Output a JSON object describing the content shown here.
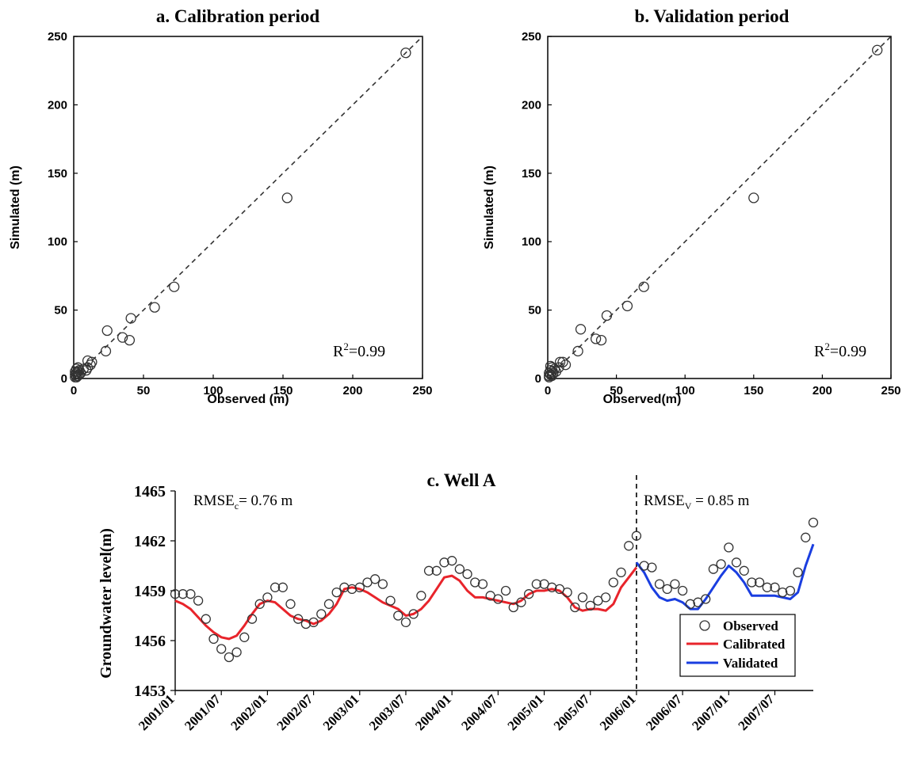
{
  "chart_data": [
    {
      "type": "scatter",
      "title": "a.  Calibration period",
      "xlabel": "Observed  (m)",
      "ylabel": "Simulated (m)",
      "xlim": [
        0,
        250
      ],
      "ylim": [
        0,
        250
      ],
      "xticks": [
        "0",
        "50",
        "100",
        "150",
        "200",
        "250"
      ],
      "yticks": [
        "0",
        "50",
        "100",
        "150",
        "200",
        "250"
      ],
      "annotation_base": "R",
      "annotation_sup": "2",
      "annotation_rest": "=0.99",
      "reference_line": "1:1 dashed",
      "points": [
        [
          238,
          238
        ],
        [
          153,
          132
        ],
        [
          72,
          67
        ],
        [
          58,
          52
        ],
        [
          41,
          44
        ],
        [
          40,
          28
        ],
        [
          35,
          30
        ],
        [
          24,
          35
        ],
        [
          23,
          20
        ],
        [
          13,
          12
        ],
        [
          12,
          10
        ],
        [
          10,
          13
        ],
        [
          10,
          8
        ],
        [
          9,
          6
        ],
        [
          7,
          7
        ],
        [
          5,
          4
        ],
        [
          4,
          6
        ],
        [
          4,
          3
        ],
        [
          3,
          8
        ],
        [
          3,
          5
        ],
        [
          3,
          2
        ],
        [
          2,
          7
        ],
        [
          2,
          4
        ],
        [
          2,
          1
        ],
        [
          1,
          5
        ],
        [
          1,
          3
        ],
        [
          1,
          1
        ],
        [
          2,
          2
        ]
      ]
    },
    {
      "type": "scatter",
      "title": "b.  Validation period",
      "xlabel": "Observed(m)",
      "ylabel": "Simulated (m)",
      "xlim": [
        0,
        250
      ],
      "ylim": [
        0,
        250
      ],
      "xticks": [
        "0",
        "50",
        "100",
        "150",
        "200",
        "250"
      ],
      "yticks": [
        "0",
        "50",
        "100",
        "150",
        "200",
        "250"
      ],
      "annotation_base": "R",
      "annotation_sup": "2",
      "annotation_rest": "=0.99",
      "reference_line": "1:1 dashed",
      "points": [
        [
          240,
          240
        ],
        [
          150,
          132
        ],
        [
          70,
          67
        ],
        [
          58,
          53
        ],
        [
          43,
          46
        ],
        [
          39,
          28
        ],
        [
          35,
          29
        ],
        [
          24,
          36
        ],
        [
          22,
          20
        ],
        [
          13,
          10
        ],
        [
          11,
          12
        ],
        [
          9,
          12
        ],
        [
          8,
          8
        ],
        [
          6,
          5
        ],
        [
          5,
          7
        ],
        [
          4,
          4
        ],
        [
          3,
          8
        ],
        [
          3,
          5
        ],
        [
          3,
          2
        ],
        [
          2,
          6
        ],
        [
          2,
          3
        ],
        [
          1,
          4
        ],
        [
          1,
          2
        ],
        [
          1,
          1
        ],
        [
          2,
          9
        ]
      ]
    },
    {
      "type": "line",
      "title": "c. Well A",
      "xlabel": "",
      "ylabel": "Groundwater level(m)",
      "ylim": [
        1453,
        1465
      ],
      "yticks": [
        "1453",
        "1456",
        "1459",
        "1462",
        "1465"
      ],
      "x_tick_labels": [
        "2001/01",
        "2001/07",
        "2002/01",
        "2002/07",
        "2003/01",
        "2003/07",
        "2004/01",
        "2004/07",
        "2005/01",
        "2005/07",
        "2006/01",
        "2006/07",
        "2007/01",
        "2007/07"
      ],
      "x_start": "2001/01",
      "x_end": "2007/12",
      "split_line": "2006/01",
      "rmse_c": {
        "base": "RMSE",
        "sub": "c",
        "rest": "= 0.76 m"
      },
      "rmse_v": {
        "base": "RMSE",
        "sub": "V",
        "rest": " = 0.85 m"
      },
      "legend_position": "bottom-right",
      "series": [
        {
          "name": "Observed",
          "style": "open circles",
          "x": [
            "2001/01",
            "2001/02",
            "2001/03",
            "2001/04",
            "2001/05",
            "2001/06",
            "2001/07",
            "2001/08",
            "2001/09",
            "2001/10",
            "2001/11",
            "2001/12",
            "2002/01",
            "2002/02",
            "2002/03",
            "2002/04",
            "2002/05",
            "2002/06",
            "2002/07",
            "2002/08",
            "2002/09",
            "2002/10",
            "2002/11",
            "2002/12",
            "2003/01",
            "2003/02",
            "2003/03",
            "2003/04",
            "2003/05",
            "2003/06",
            "2003/07",
            "2003/08",
            "2003/09",
            "2003/10",
            "2003/11",
            "2003/12",
            "2004/01",
            "2004/02",
            "2004/03",
            "2004/04",
            "2004/05",
            "2004/06",
            "2004/07",
            "2004/08",
            "2004/09",
            "2004/10",
            "2004/11",
            "2004/12",
            "2005/01",
            "2005/02",
            "2005/03",
            "2005/04",
            "2005/05",
            "2005/06",
            "2005/07",
            "2005/08",
            "2005/09",
            "2005/10",
            "2005/11",
            "2005/12",
            "2006/01",
            "2006/02",
            "2006/03",
            "2006/04",
            "2006/05",
            "2006/06",
            "2006/07",
            "2006/08",
            "2006/09",
            "2006/10",
            "2006/11",
            "2006/12",
            "2007/01",
            "2007/02",
            "2007/03",
            "2007/04",
            "2007/05",
            "2007/06",
            "2007/07",
            "2007/08",
            "2007/09",
            "2007/10",
            "2007/11",
            "2007/12"
          ],
          "values": [
            1458.8,
            1458.8,
            1458.8,
            1458.4,
            1457.3,
            1456.1,
            1455.5,
            1455.0,
            1455.3,
            1456.2,
            1457.3,
            1458.2,
            1458.6,
            1459.2,
            1459.2,
            1458.2,
            1457.3,
            1457.0,
            1457.1,
            1457.6,
            1458.2,
            1458.9,
            1459.2,
            1459.1,
            1459.2,
            1459.5,
            1459.7,
            1459.4,
            1458.4,
            1457.5,
            1457.1,
            1457.6,
            1458.7,
            1460.2,
            1460.2,
            1460.7,
            1460.8,
            1460.3,
            1460.0,
            1459.5,
            1459.4,
            1458.7,
            1458.5,
            1459.0,
            1458.0,
            1458.3,
            1458.8,
            1459.4,
            1459.4,
            1459.2,
            1459.1,
            1458.9,
            1458.0,
            1458.6,
            1458.1,
            1458.4,
            1458.6,
            1459.5,
            1460.1,
            1461.7,
            1462.3,
            1460.5,
            1460.4,
            1459.4,
            1459.1,
            1459.4,
            1459.0,
            1458.2,
            1458.3,
            1458.5,
            1460.3,
            1460.6,
            1461.6,
            1460.7,
            1460.2,
            1459.5,
            1459.5,
            1459.2,
            1459.2,
            1458.9,
            1459.0,
            1460.1,
            1462.2,
            1463.1
          ]
        },
        {
          "name": "Calibrated",
          "color": "#e8242b",
          "x": [
            "2001/01",
            "2001/02",
            "2001/03",
            "2001/04",
            "2001/05",
            "2001/06",
            "2001/07",
            "2001/08",
            "2001/09",
            "2001/10",
            "2001/11",
            "2001/12",
            "2002/01",
            "2002/02",
            "2002/03",
            "2002/04",
            "2002/05",
            "2002/06",
            "2002/07",
            "2002/08",
            "2002/09",
            "2002/10",
            "2002/11",
            "2002/12",
            "2003/01",
            "2003/02",
            "2003/03",
            "2003/04",
            "2003/05",
            "2003/06",
            "2003/07",
            "2003/08",
            "2003/09",
            "2003/10",
            "2003/11",
            "2003/12",
            "2004/01",
            "2004/02",
            "2004/03",
            "2004/04",
            "2004/05",
            "2004/06",
            "2004/07",
            "2004/08",
            "2004/09",
            "2004/10",
            "2004/11",
            "2004/12",
            "2005/01",
            "2005/02",
            "2005/03",
            "2005/04",
            "2005/05",
            "2005/06",
            "2005/07",
            "2005/08",
            "2005/09",
            "2005/10",
            "2005/11",
            "2005/12",
            "2006/01"
          ],
          "values": [
            1458.4,
            1458.2,
            1457.9,
            1457.4,
            1456.9,
            1456.5,
            1456.2,
            1456.1,
            1456.3,
            1456.9,
            1457.6,
            1458.2,
            1458.4,
            1458.3,
            1457.9,
            1457.5,
            1457.3,
            1457.2,
            1457.0,
            1457.2,
            1457.6,
            1458.2,
            1459.1,
            1459.2,
            1459.1,
            1458.9,
            1458.6,
            1458.3,
            1458.1,
            1457.9,
            1457.5,
            1457.6,
            1457.9,
            1458.4,
            1459.1,
            1459.8,
            1459.9,
            1459.6,
            1459.0,
            1458.6,
            1458.6,
            1458.5,
            1458.4,
            1458.3,
            1458.2,
            1458.4,
            1458.8,
            1459.0,
            1459.0,
            1459.1,
            1459.0,
            1458.6,
            1458.0,
            1457.8,
            1457.9,
            1457.9,
            1457.8,
            1458.2,
            1459.2,
            1459.8,
            1460.4
          ]
        },
        {
          "name": "Validated",
          "color": "#1a3ee0",
          "x": [
            "2006/01",
            "2006/02",
            "2006/03",
            "2006/04",
            "2006/05",
            "2006/06",
            "2006/07",
            "2006/08",
            "2006/09",
            "2006/10",
            "2006/11",
            "2006/12",
            "2007/01",
            "2007/02",
            "2007/03",
            "2007/04",
            "2007/05",
            "2007/06",
            "2007/07",
            "2007/08",
            "2007/09",
            "2007/10",
            "2007/11",
            "2007/12"
          ],
          "values": [
            1460.7,
            1460.1,
            1459.2,
            1458.6,
            1458.4,
            1458.5,
            1458.3,
            1457.9,
            1457.9,
            1458.5,
            1459.2,
            1459.9,
            1460.5,
            1460.1,
            1459.5,
            1458.7,
            1458.7,
            1458.7,
            1458.7,
            1458.6,
            1458.5,
            1458.9,
            1460.5,
            1461.8
          ]
        }
      ]
    }
  ]
}
